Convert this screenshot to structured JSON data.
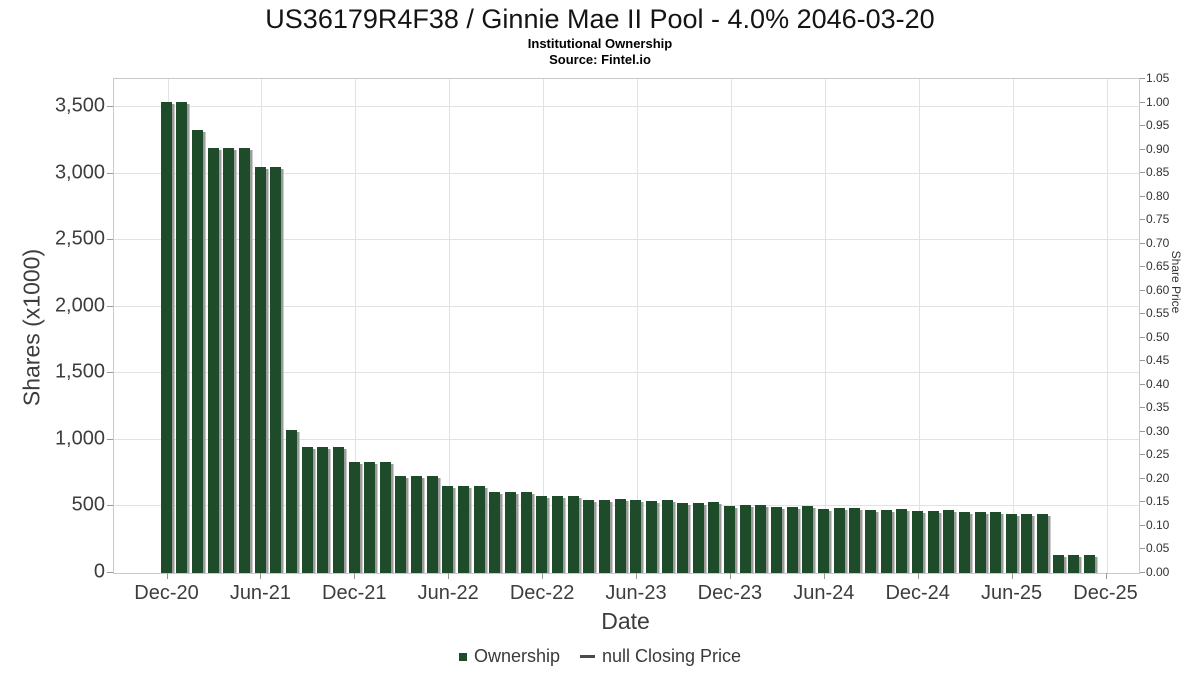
{
  "header": {
    "title": "US36179R4F38 / Ginnie Mae II Pool - 4.0% 2046-03-20",
    "subtitle": "Institutional Ownership",
    "source": "Source: Fintel.io"
  },
  "axes": {
    "left": {
      "label": "Shares (x1000)",
      "ticks": [
        "0",
        "500",
        "1,000",
        "1,500",
        "2,000",
        "2,500",
        "3,000",
        "3,500"
      ]
    },
    "right": {
      "label": "Share Price",
      "ticks": [
        "0.00",
        "0.05",
        "0.10",
        "0.15",
        "0.20",
        "0.25",
        "0.30",
        "0.35",
        "0.40",
        "0.45",
        "0.50",
        "0.55",
        "0.60",
        "0.65",
        "0.70",
        "0.75",
        "0.80",
        "0.85",
        "0.90",
        "0.95",
        "1.00",
        "1.05"
      ]
    },
    "x": {
      "label": "Date",
      "ticks": [
        "Dec-20",
        "Jun-21",
        "Dec-21",
        "Jun-22",
        "Dec-22",
        "Jun-23",
        "Dec-23",
        "Jun-24",
        "Dec-24",
        "Jun-25",
        "Dec-25"
      ]
    }
  },
  "legend": {
    "items": [
      {
        "label": "Ownership",
        "marker": "square",
        "color": "#1e4b2a"
      },
      {
        "label": "null Closing Price",
        "marker": "line",
        "color": "#4a4a4a"
      }
    ]
  },
  "colors": {
    "bar": "#1e4b2a",
    "bar_shadow": "#9b9b9b",
    "grid": "#e2e2e2",
    "plot_border": "#c9c9c9",
    "tick_text": "#3d3d3d"
  },
  "chart_data": {
    "type": "bar",
    "title": "US36179R4F38 / Ginnie Mae II Pool - 4.0% 2046-03-20",
    "subtitle": "Institutional Ownership",
    "source": "Source: Fintel.io",
    "xlabel": "Date",
    "ylabel": "Shares (x1000)",
    "y2label": "Share Price",
    "ylim": [
      0,
      3710
    ],
    "y2lim": [
      0,
      1.05
    ],
    "grid": true,
    "legend_position": "bottom",
    "categories": [
      "Dec-20",
      "Jan-21",
      "Feb-21",
      "Mar-21",
      "Apr-21",
      "May-21",
      "Jun-21",
      "Jul-21",
      "Aug-21",
      "Sep-21",
      "Oct-21",
      "Nov-21",
      "Dec-21",
      "Jan-22",
      "Feb-22",
      "Mar-22",
      "Apr-22",
      "May-22",
      "Jun-22",
      "Jul-22",
      "Aug-22",
      "Sep-22",
      "Oct-22",
      "Nov-22",
      "Dec-22",
      "Jan-23",
      "Feb-23",
      "Mar-23",
      "Apr-23",
      "May-23",
      "Jun-23",
      "Jul-23",
      "Aug-23",
      "Sep-23",
      "Oct-23",
      "Nov-23",
      "Dec-23",
      "Jan-24",
      "Feb-24",
      "Mar-24",
      "Apr-24",
      "May-24",
      "Jun-24",
      "Jul-24",
      "Aug-24",
      "Sep-24",
      "Oct-24",
      "Nov-24",
      "Dec-24",
      "Jan-25",
      "Feb-25",
      "Mar-25",
      "Apr-25",
      "May-25",
      "Jun-25",
      "Jul-25",
      "Aug-25",
      "Sep-25",
      "Oct-25",
      "Nov-25"
    ],
    "series": [
      {
        "name": "Ownership",
        "type": "bar",
        "units": "shares x1000",
        "values": [
          3540,
          3540,
          3330,
          3190,
          3190,
          3190,
          3050,
          3050,
          1075,
          950,
          950,
          950,
          835,
          835,
          835,
          730,
          728,
          730,
          655,
          652,
          655,
          608,
          605,
          612,
          578,
          575,
          582,
          552,
          550,
          556,
          548,
          542,
          546,
          528,
          528,
          533,
          505,
          508,
          510,
          492,
          495,
          500,
          480,
          485,
          490,
          472,
          472,
          477,
          465,
          467,
          470,
          460,
          457,
          460,
          442,
          445,
          442,
          138,
          135,
          135
        ]
      },
      {
        "name": "null Closing Price",
        "type": "line",
        "values": []
      }
    ]
  }
}
